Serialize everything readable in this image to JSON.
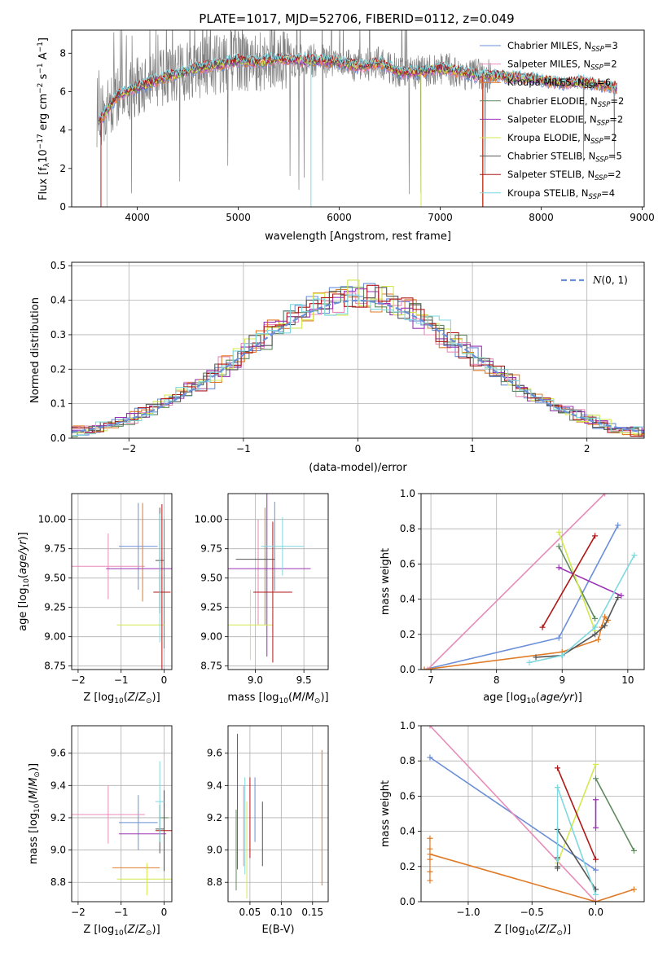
{
  "title": "PLATE=1017, MJD=52706, FIBERID=0112, z=0.049",
  "colors": {
    "chabrier_miles": "#6a8fd8",
    "salpeter_miles": "#e88bb8",
    "kroupa_miles": "#e07b28",
    "chabrier_elodie": "#5f8a5f",
    "salpeter_elodie": "#9b32b4",
    "kroupa_elodie": "#d4e84e",
    "chabrier_stelib": "#555555",
    "salpeter_stelib": "#b01818",
    "kroupa_stelib": "#7fd8e0",
    "data": "#808080",
    "grid": "#b0b0b0",
    "normal": "#6a8fd8"
  },
  "legend": [
    {
      "key": "chabrier_miles",
      "label": "Chabrier MILES, N",
      "sub": "SSP",
      "suffix": "=3"
    },
    {
      "key": "salpeter_miles",
      "label": "Salpeter MILES, N",
      "sub": "SSP",
      "suffix": "=2"
    },
    {
      "key": "kroupa_miles",
      "label": "Kroupa MILES, N",
      "sub": "SSP",
      "suffix": "=6"
    },
    {
      "key": "chabrier_elodie",
      "label": "Chabrier ELODIE, N",
      "sub": "SSP",
      "suffix": "=2"
    },
    {
      "key": "salpeter_elodie",
      "label": "Salpeter ELODIE, N",
      "sub": "SSP",
      "suffix": "=2"
    },
    {
      "key": "kroupa_elodie",
      "label": "Kroupa ELODIE, N",
      "sub": "SSP",
      "suffix": "=2"
    },
    {
      "key": "chabrier_stelib",
      "label": "Chabrier STELIB, N",
      "sub": "SSP",
      "suffix": "=5"
    },
    {
      "key": "salpeter_stelib",
      "label": "Salpeter STELIB, N",
      "sub": "SSP",
      "suffix": "=2"
    },
    {
      "key": "kroupa_stelib",
      "label": "Kroupa STELIB, N",
      "sub": "SSP",
      "suffix": "=4"
    }
  ],
  "chart_data": [
    {
      "id": "spectrum",
      "type": "line",
      "xlabel": "wavelength [Angstrom, rest frame]",
      "ylabel": "Flux [f_λ 10^-17 erg cm^-2 s^-1 A^-1]",
      "xlim": [
        3350,
        9020
      ],
      "ylim": [
        0,
        9.2
      ],
      "xticks": [
        4000,
        5000,
        6000,
        7000,
        8000,
        9000
      ],
      "yticks": [
        0,
        2,
        4,
        6,
        8
      ],
      "legend_position": "right",
      "data_envelope": {
        "x": [
          3600,
          3700,
          3800,
          3900,
          4000,
          4200,
          4400,
          4600,
          4800,
          5000,
          5200,
          5400,
          5600,
          5800,
          6000,
          6200,
          6400,
          6600,
          6800,
          7000,
          7200,
          7400,
          7600,
          7800,
          8000,
          8200,
          8400,
          8600,
          8750
        ],
        "y": [
          4.4,
          5.0,
          5.8,
          6.0,
          6.2,
          6.6,
          6.9,
          7.2,
          7.4,
          7.6,
          7.5,
          7.7,
          7.6,
          7.6,
          7.5,
          7.3,
          7.5,
          7.0,
          7.0,
          7.2,
          7.0,
          6.8,
          6.8,
          6.7,
          6.6,
          6.4,
          6.5,
          6.3,
          6.2
        ]
      },
      "dips": [
        {
          "x": 3640,
          "model": "salpeter_stelib"
        },
        {
          "x": 3700,
          "model": "kroupa_stelib"
        },
        {
          "x": 5720,
          "model": "kroupa_stelib"
        },
        {
          "x": 6810,
          "model": "kroupa_elodie"
        },
        {
          "x": 7420,
          "model": "salpeter_stelib"
        },
        {
          "x": 7425,
          "model": "kroupa_miles"
        }
      ]
    },
    {
      "id": "residuals",
      "type": "histogram",
      "xlabel": "(data-model)/error",
      "ylabel": "Normed distribution",
      "xlim": [
        -2.5,
        2.5
      ],
      "ylim": [
        0,
        0.51
      ],
      "xticks": [
        -2,
        -1,
        0,
        1,
        2
      ],
      "yticks": [
        0.0,
        0.1,
        0.2,
        0.3,
        0.4,
        0.5
      ],
      "grid": true,
      "reference_curve": {
        "name": "N(0,1)",
        "mean": 0,
        "sigma": 1
      },
      "legend_position": "top-right"
    },
    {
      "id": "age_vs_Z",
      "type": "errorbar",
      "xlabel": "Z [log10(Z/Z_sun)]",
      "ylabel": "age [log10(age/yr)]",
      "xlim": [
        -2.15,
        0.18
      ],
      "ylim": [
        8.72,
        10.22
      ],
      "xticks": [
        -2,
        -1,
        0
      ],
      "yticks": [
        8.75,
        9.0,
        9.25,
        9.5,
        9.75,
        10.0
      ],
      "points": [
        {
          "model": "chabrier_miles",
          "x": -0.6,
          "xerr": 0.45,
          "y": 9.77,
          "yerr": 0.37
        },
        {
          "model": "salpeter_miles",
          "x": -1.3,
          "xerr": 0.85,
          "y": 9.6,
          "yerr": 0.28
        },
        {
          "model": "kroupa_miles",
          "x": -0.5,
          "xerr": 0.0,
          "y": 9.72,
          "yerr": 0.42
        },
        {
          "model": "chabrier_elodie",
          "x": 0.0,
          "xerr": 0.0,
          "y": 9.45,
          "yerr": 0.55
        },
        {
          "model": "salpeter_elodie",
          "x": -0.45,
          "xerr": 0.9,
          "y": 9.58,
          "yerr": 0.0
        },
        {
          "model": "kroupa_elodie",
          "x": -0.55,
          "xerr": 0.55,
          "y": 9.1,
          "yerr": 0.0
        },
        {
          "model": "chabrier_stelib",
          "x": -0.1,
          "xerr": 0.1,
          "y": 9.65,
          "yerr": 0.45
        },
        {
          "model": "salpeter_stelib",
          "x": -0.05,
          "xerr": 0.2,
          "y": 9.38,
          "yerr": 0.75
        },
        {
          "model": "kroupa_stelib",
          "x": -0.1,
          "xerr": 0.0,
          "y": 9.5,
          "yerr": 0.55
        }
      ]
    },
    {
      "id": "age_vs_mass",
      "type": "errorbar",
      "xlabel": "mass [log10(M/M_sun)]",
      "ylabel": "",
      "xlim": [
        8.72,
        9.75
      ],
      "ylim": [
        8.72,
        10.22
      ],
      "xticks": [
        9.0,
        9.5
      ],
      "yticks": [
        8.75,
        9.0,
        9.25,
        9.5,
        9.75,
        10.0
      ],
      "points": [
        {
          "model": "chabrier_miles",
          "x": 9.2,
          "xerr": 0.0,
          "y": 9.77,
          "yerr": 0.38
        },
        {
          "model": "salpeter_miles",
          "x": 9.03,
          "xerr": 0.0,
          "y": 9.55,
          "yerr": 0.45
        },
        {
          "model": "kroupa_miles",
          "x": 9.1,
          "xerr": 0.0,
          "y": 9.6,
          "yerr": 0.5
        },
        {
          "model": "chabrier_elodie",
          "x": 8.99,
          "xerr": 0.0,
          "y": 9.6,
          "yerr": 0.0
        },
        {
          "model": "salpeter_elodie",
          "x": 9.12,
          "xerr": 0.45,
          "y": 9.58,
          "yerr": 0.75
        },
        {
          "model": "kroupa_elodie",
          "x": 8.95,
          "xerr": 0.23,
          "y": 9.1,
          "yerr": 0.3
        },
        {
          "model": "chabrier_stelib",
          "x": 9.0,
          "xerr": 0.2,
          "y": 9.66,
          "yerr": 0.0
        },
        {
          "model": "salpeter_stelib",
          "x": 9.18,
          "xerr": 0.2,
          "y": 9.38,
          "yerr": 0.6
        },
        {
          "model": "kroupa_stelib",
          "x": 9.28,
          "xerr": 0.22,
          "y": 9.77,
          "yerr": 0.25
        }
      ]
    },
    {
      "id": "weight_vs_age",
      "type": "line",
      "xlabel": "age [log10(age/yr)]",
      "ylabel": "mass weight",
      "xlim": [
        6.85,
        10.25
      ],
      "ylim": [
        0,
        1.0
      ],
      "xticks": [
        7,
        8,
        9,
        10
      ],
      "yticks": [
        0.0,
        0.2,
        0.4,
        0.6,
        0.8,
        1.0
      ],
      "series": [
        {
          "model": "chabrier_miles",
          "x": [
            6.9,
            8.95,
            9.85
          ],
          "y": [
            0.0,
            0.18,
            0.82
          ]
        },
        {
          "model": "salpeter_miles",
          "x": [
            6.95,
            9.65
          ],
          "y": [
            0.0,
            1.0
          ]
        },
        {
          "model": "kroupa_miles",
          "x": [
            6.9,
            9.0,
            9.55,
            9.6,
            9.65,
            9.7
          ],
          "y": [
            0.0,
            0.1,
            0.17,
            0.24,
            0.3,
            0.28
          ]
        },
        {
          "model": "chabrier_elodie",
          "x": [
            8.95,
            9.5
          ],
          "y": [
            0.7,
            0.29
          ]
        },
        {
          "model": "salpeter_elodie",
          "x": [
            8.95,
            9.9
          ],
          "y": [
            0.58,
            0.42
          ]
        },
        {
          "model": "kroupa_elodie",
          "x": [
            8.95,
            9.5
          ],
          "y": [
            0.78,
            0.22
          ]
        },
        {
          "model": "chabrier_stelib",
          "x": [
            8.6,
            9.0,
            9.5,
            9.65,
            9.85
          ],
          "y": [
            0.07,
            0.08,
            0.2,
            0.25,
            0.41
          ]
        },
        {
          "model": "salpeter_stelib",
          "x": [
            8.7,
            9.5
          ],
          "y": [
            0.24,
            0.76
          ]
        },
        {
          "model": "kroupa_stelib",
          "x": [
            8.5,
            9.0,
            9.5,
            10.1
          ],
          "y": [
            0.04,
            0.08,
            0.24,
            0.65
          ]
        }
      ]
    },
    {
      "id": "mass_vs_Z",
      "type": "errorbar",
      "xlabel": "Z [log10(Z/Z_sun)]",
      "ylabel": "mass [log10(M/M_sun)]",
      "xlim": [
        -2.15,
        0.18
      ],
      "ylim": [
        8.68,
        9.77
      ],
      "xticks": [
        -2,
        -1,
        0
      ],
      "yticks": [
        8.8,
        9.0,
        9.2,
        9.4,
        9.6
      ],
      "points": [
        {
          "model": "chabrier_miles",
          "x": -0.6,
          "xerr": 0.45,
          "y": 9.17,
          "yerr": 0.17
        },
        {
          "model": "salpeter_miles",
          "x": -1.3,
          "xerr": 0.85,
          "y": 9.22,
          "yerr": 0.18
        },
        {
          "model": "kroupa_miles",
          "x": -0.65,
          "xerr": 0.55,
          "y": 8.89,
          "yerr": 0.0
        },
        {
          "model": "chabrier_elodie",
          "x": 0.0,
          "xerr": 0.1,
          "y": 9.2,
          "yerr": 0.15
        },
        {
          "model": "salpeter_elodie",
          "x": -0.5,
          "xerr": 0.55,
          "y": 9.1,
          "yerr": 0.0
        },
        {
          "model": "kroupa_elodie",
          "x": -0.4,
          "xerr": 0.7,
          "y": 8.82,
          "yerr": 0.1
        },
        {
          "model": "chabrier_stelib",
          "x": -0.1,
          "xerr": 0.1,
          "y": 9.13,
          "yerr": 0.15
        },
        {
          "model": "salpeter_stelib",
          "x": 0.0,
          "xerr": 0.2,
          "y": 9.12,
          "yerr": 0.25
        },
        {
          "model": "kroupa_stelib",
          "x": -0.1,
          "xerr": 0.1,
          "y": 9.3,
          "yerr": 0.25
        }
      ]
    },
    {
      "id": "mass_vs_EBV",
      "type": "errorbar",
      "xlabel": "E(B-V)",
      "ylabel": "",
      "xlim": [
        0.015,
        0.175
      ],
      "ylim": [
        8.68,
        9.77
      ],
      "xticks": [
        0.05,
        0.1,
        0.15
      ],
      "yticks": [
        8.8,
        9.0,
        9.2,
        9.4,
        9.6
      ],
      "points": [
        {
          "model": "chabrier_miles",
          "x": 0.058,
          "xerr": 0.0,
          "y": 9.25,
          "yerr": 0.2
        },
        {
          "model": "salpeter_miles",
          "x": 0.04,
          "xerr": 0.0,
          "y": 9.15,
          "yerr": 0.25
        },
        {
          "model": "kroupa_miles",
          "x": 0.165,
          "xerr": 0.0,
          "y": 9.2,
          "yerr": 0.42
        },
        {
          "model": "chabrier_elodie",
          "x": 0.028,
          "xerr": 0.0,
          "y": 9.0,
          "yerr": 0.25
        },
        {
          "model": "salpeter_elodie",
          "x": 0.03,
          "xerr": 0.0,
          "y": 9.3,
          "yerr": 0.42
        },
        {
          "model": "kroupa_elodie",
          "x": 0.045,
          "xerr": 0.0,
          "y": 9.0,
          "yerr": 0.3
        },
        {
          "model": "chabrier_stelib",
          "x": 0.07,
          "xerr": 0.0,
          "y": 9.1,
          "yerr": 0.2
        },
        {
          "model": "salpeter_stelib",
          "x": 0.05,
          "xerr": 0.0,
          "y": 9.2,
          "yerr": 0.25
        },
        {
          "model": "kroupa_stelib",
          "x": 0.042,
          "xerr": 0.0,
          "y": 9.15,
          "yerr": 0.3
        }
      ]
    },
    {
      "id": "weight_vs_Z",
      "type": "line",
      "xlabel": "Z [log10(Z/Z_sun)]",
      "ylabel": "mass weight",
      "xlim": [
        -1.37,
        0.38
      ],
      "ylim": [
        0,
        1.0
      ],
      "xticks": [
        -1.0,
        -0.5,
        0.0
      ],
      "yticks": [
        0.0,
        0.2,
        0.4,
        0.6,
        0.8,
        1.0
      ],
      "series": [
        {
          "model": "chabrier_miles",
          "x": [
            -1.3,
            0.0
          ],
          "y": [
            0.82,
            0.18
          ]
        },
        {
          "model": "salpeter_miles",
          "x": [
            -1.3,
            0.0
          ],
          "y": [
            1.0,
            0.0
          ]
        },
        {
          "model": "kroupa_miles",
          "x": [
            -1.3,
            0.0,
            0.3
          ],
          "y": [
            0.27,
            0.0,
            0.07
          ]
        },
        {
          "model": "chabrier_elodie",
          "x": [
            0.0,
            0.3
          ],
          "y": [
            0.7,
            0.29
          ]
        },
        {
          "model": "salpeter_elodie",
          "x": [
            0.0,
            0.0
          ],
          "y": [
            0.58,
            0.42
          ]
        },
        {
          "model": "kroupa_elodie",
          "x": [
            -0.3,
            0.0
          ],
          "y": [
            0.22,
            0.78
          ]
        },
        {
          "model": "chabrier_stelib",
          "x": [
            -0.3,
            0.0
          ],
          "y": [
            0.41,
            0.07
          ]
        },
        {
          "model": "salpeter_stelib",
          "x": [
            -0.3,
            0.0
          ],
          "y": [
            0.76,
            0.24
          ]
        },
        {
          "model": "kroupa_stelib",
          "x": [
            -0.3,
            0.0
          ],
          "y": [
            0.65,
            0.04
          ]
        }
      ],
      "vertical_ticks": [
        {
          "model": "kroupa_miles",
          "x": -1.3,
          "y": [
            0.12,
            0.17,
            0.24,
            0.3,
            0.36
          ]
        },
        {
          "model": "chabrier_stelib",
          "x": -0.3,
          "y": [
            0.19,
            0.2,
            0.25,
            0.41
          ]
        },
        {
          "model": "kroupa_stelib",
          "x": -0.3,
          "y": [
            0.24,
            0.65
          ]
        }
      ]
    }
  ]
}
